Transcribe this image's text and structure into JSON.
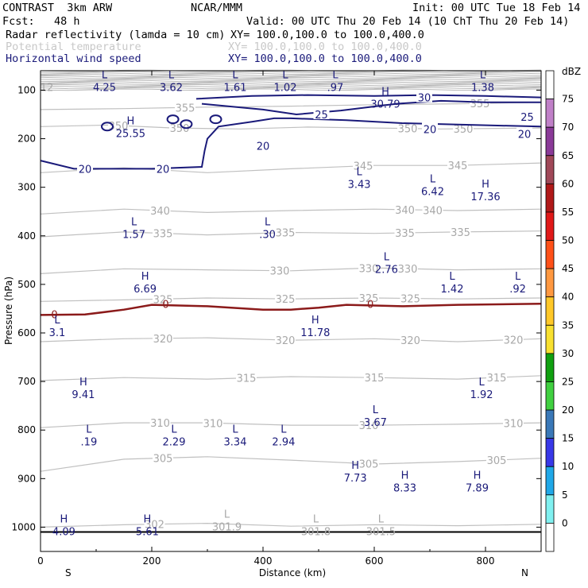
{
  "header": {
    "model": "CONTRAST  3km ARW",
    "org": "NCAR/MMM",
    "init": "Init: 00 UTC Tue 18 Feb 14",
    "fcst": "Fcst:   48 h",
    "valid": "Valid: 00 UTC Thu 20 Feb 14 (10 ChT Thu 20 Feb 14)",
    "fields": [
      {
        "name": "Radar reflectivity (lamda = 10 cm)",
        "xy": "XY= 100.0,100.0 to 100.0,400.0",
        "color": "#000000"
      },
      {
        "name": "Potential temperature",
        "xy": "XY= 100.0,100.0 to 100.0,400.0",
        "color": "#c8c8c8"
      },
      {
        "name": "Horizontal wind speed",
        "xy": "XY= 100.0,100.0 to 100.0,400.0",
        "color": "#1a1a7a"
      }
    ]
  },
  "chart_data": {
    "type": "cross-section",
    "xlabel": "Distance (km)",
    "ylabel": "Pressure (hPa)",
    "xlim": [
      0,
      900
    ],
    "ylim": [
      60,
      1050
    ],
    "x_ticks": [
      0,
      200,
      400,
      600,
      800
    ],
    "y_ticks": [
      100,
      200,
      300,
      400,
      500,
      600,
      700,
      800,
      900,
      1000
    ],
    "left_end_label": "S",
    "right_end_label": "N",
    "colorbar": {
      "unit": "dBZ",
      "levels": [
        75,
        70,
        65,
        60,
        55,
        50,
        45,
        40,
        35,
        30,
        25,
        20,
        15,
        10,
        5,
        0
      ],
      "colors": [
        "#ffffff",
        "#c080c8",
        "#8a3a98",
        "#a04858",
        "#b01818",
        "#e01818",
        "#ff5018",
        "#ff9840",
        "#ffc828",
        "#f8e030",
        "#10a010",
        "#40d040",
        "#3a78b8",
        "#3838e8",
        "#20a8e8",
        "#80f0f0",
        "#ffffff"
      ]
    },
    "theta_isentropes": [
      {
        "label": "355",
        "p": 137,
        "points": [
          [
            0,
            140
          ],
          [
            150,
            138
          ],
          [
            300,
            135
          ],
          [
            450,
            133
          ],
          [
            600,
            130
          ],
          [
            750,
            128
          ],
          [
            900,
            125
          ]
        ],
        "labels_at": [
          260,
          790
        ]
      },
      {
        "label": "350",
        "p": 178,
        "points": [
          [
            0,
            175
          ],
          [
            120,
            172
          ],
          [
            240,
            178
          ],
          [
            360,
            180
          ],
          [
            480,
            176
          ],
          [
            600,
            178
          ],
          [
            720,
            180
          ],
          [
            900,
            178
          ]
        ],
        "labels_at": [
          140,
          250,
          660,
          760
        ]
      },
      {
        "label": "345",
        "p": 265,
        "points": [
          [
            0,
            270
          ],
          [
            150,
            260
          ],
          [
            300,
            270
          ],
          [
            450,
            262
          ],
          [
            600,
            255
          ],
          [
            750,
            255
          ],
          [
            900,
            250
          ]
        ],
        "labels_at": [
          580,
          750
        ]
      },
      {
        "label": "340",
        "p": 350,
        "points": [
          [
            0,
            355
          ],
          [
            150,
            345
          ],
          [
            300,
            352
          ],
          [
            450,
            348
          ],
          [
            600,
            345
          ],
          [
            750,
            348
          ],
          [
            900,
            345
          ]
        ],
        "labels_at": [
          215,
          655,
          705
        ]
      },
      {
        "label": "335",
        "p": 395,
        "points": [
          [
            0,
            402
          ],
          [
            150,
            392
          ],
          [
            300,
            398
          ],
          [
            450,
            393
          ],
          [
            600,
            395
          ],
          [
            750,
            392
          ],
          [
            900,
            390
          ]
        ],
        "labels_at": [
          220,
          440,
          655,
          755
        ]
      },
      {
        "label": "330",
        "p": 470,
        "points": [
          [
            0,
            478
          ],
          [
            150,
            468
          ],
          [
            300,
            470
          ],
          [
            450,
            472
          ],
          [
            600,
            466
          ],
          [
            750,
            470
          ],
          [
            900,
            468
          ]
        ],
        "labels_at": [
          430,
          590,
          660
        ]
      },
      {
        "label": "325",
        "p": 530,
        "points": [
          [
            0,
            535
          ],
          [
            150,
            532
          ],
          [
            300,
            528
          ],
          [
            450,
            530
          ],
          [
            600,
            528
          ],
          [
            750,
            530
          ],
          [
            900,
            528
          ]
        ],
        "labels_at": [
          220,
          440,
          590,
          665
        ]
      },
      {
        "label": "320",
        "p": 615,
        "points": [
          [
            0,
            618
          ],
          [
            150,
            612
          ],
          [
            300,
            610
          ],
          [
            450,
            615
          ],
          [
            600,
            612
          ],
          [
            750,
            618
          ],
          [
            900,
            612
          ]
        ],
        "labels_at": [
          220,
          440,
          665,
          850
        ]
      },
      {
        "label": "315",
        "p": 695,
        "points": [
          [
            0,
            698
          ],
          [
            150,
            692
          ],
          [
            300,
            695
          ],
          [
            450,
            690
          ],
          [
            600,
            692
          ],
          [
            750,
            695
          ],
          [
            900,
            688
          ]
        ],
        "labels_at": [
          370,
          600,
          820
        ]
      },
      {
        "label": "310",
        "p": 790,
        "points": [
          [
            0,
            795
          ],
          [
            150,
            785
          ],
          [
            300,
            785
          ],
          [
            450,
            790
          ],
          [
            600,
            790
          ],
          [
            750,
            788
          ],
          [
            900,
            785
          ]
        ],
        "labels_at": [
          215,
          310,
          590,
          850
        ]
      },
      {
        "label": "305",
        "p": 865,
        "points": [
          [
            0,
            885
          ],
          [
            150,
            860
          ],
          [
            300,
            855
          ],
          [
            450,
            862
          ],
          [
            600,
            870
          ],
          [
            750,
            865
          ],
          [
            900,
            858
          ]
        ],
        "labels_at": [
          220,
          590,
          820
        ]
      },
      {
        "label": "302",
        "p": 995,
        "points": [
          [
            0,
            1000
          ],
          [
            150,
            995
          ],
          [
            300,
            992
          ],
          [
            450,
            998
          ],
          [
            600,
            995
          ],
          [
            750,
            997
          ],
          [
            900,
            994
          ]
        ],
        "labels_at": [
          205
        ]
      }
    ],
    "wind_contours": [
      {
        "label": "20",
        "points": [
          [
            0,
            245
          ],
          [
            60,
            262
          ],
          [
            200,
            262
          ],
          [
            290,
            258
          ],
          [
            295,
            225
          ],
          [
            300,
            200
          ],
          [
            320,
            175
          ],
          [
            380,
            165
          ],
          [
            420,
            158
          ],
          [
            450,
            158
          ],
          [
            550,
            162
          ],
          [
            650,
            168
          ],
          [
            900,
            175
          ]
        ],
        "labels_at": [
          [
            80,
            262
          ],
          [
            220,
            262
          ],
          [
            400,
            215
          ],
          [
            700,
            180
          ],
          [
            870,
            190
          ]
        ]
      },
      {
        "label": "25",
        "points": [
          [
            290,
            128
          ],
          [
            400,
            140
          ],
          [
            460,
            150
          ],
          [
            540,
            142
          ],
          [
            640,
            128
          ],
          [
            720,
            122
          ],
          [
            800,
            125
          ],
          [
            900,
            125
          ]
        ],
        "labels_at": [
          [
            505,
            150
          ],
          [
            875,
            155
          ]
        ]
      },
      {
        "label": "30",
        "points": [
          [
            280,
            118
          ],
          [
            380,
            112
          ],
          [
            480,
            110
          ],
          [
            600,
            112
          ],
          [
            700,
            110
          ],
          [
            800,
            112
          ],
          [
            900,
            115
          ]
        ],
        "labels_at": [
          [
            690,
            115
          ]
        ]
      }
    ],
    "wind_extrema": [
      {
        "type": "L",
        "value": "4.25",
        "x": 115,
        "p": 85
      },
      {
        "type": "L",
        "value": "3.62",
        "x": 235,
        "p": 85
      },
      {
        "type": "L",
        "value": "1.61",
        "x": 350,
        "p": 85
      },
      {
        "type": "L",
        "value": "1.02",
        "x": 440,
        "p": 85
      },
      {
        "type": "L",
        "value": ".97",
        "x": 530,
        "p": 85
      },
      {
        "type": "L",
        "value": "1.38",
        "x": 795,
        "p": 85
      },
      {
        "type": "H",
        "value": "30.79",
        "x": 620,
        "p": 120
      },
      {
        "type": "H",
        "value": "25.55",
        "x": 162,
        "p": 180
      },
      {
        "type": "L",
        "value": "3.43",
        "x": 573,
        "p": 285
      },
      {
        "type": "L",
        "value": "6.42",
        "x": 705,
        "p": 300
      },
      {
        "type": "H",
        "value": "17.36",
        "x": 800,
        "p": 310
      },
      {
        "type": "L",
        "value": "1.57",
        "x": 168,
        "p": 388
      },
      {
        "type": "L",
        "value": ".30",
        "x": 408,
        "p": 388
      },
      {
        "type": "L",
        "value": "2.76",
        "x": 622,
        "p": 460
      },
      {
        "type": "H",
        "value": "6.69",
        "x": 188,
        "p": 500
      },
      {
        "type": "L",
        "value": "1.42",
        "x": 740,
        "p": 500
      },
      {
        "type": "L",
        "value": ".92",
        "x": 858,
        "p": 500
      },
      {
        "type": "L",
        "value": "3.1",
        "x": 30,
        "p": 590
      },
      {
        "type": "H",
        "value": "11.78",
        "x": 494,
        "p": 590
      },
      {
        "type": "H",
        "value": "9.41",
        "x": 77,
        "p": 718
      },
      {
        "type": "L",
        "value": "1.92",
        "x": 793,
        "p": 718
      },
      {
        "type": "L",
        "value": "3.67",
        "x": 602,
        "p": 775
      },
      {
        "type": "L",
        "value": ".19",
        "x": 87,
        "p": 815
      },
      {
        "type": "L",
        "value": "2.29",
        "x": 240,
        "p": 815
      },
      {
        "type": "L",
        "value": "3.34",
        "x": 350,
        "p": 815
      },
      {
        "type": "L",
        "value": "2.94",
        "x": 437,
        "p": 815
      },
      {
        "type": "H",
        "value": "7.73",
        "x": 566,
        "p": 890
      },
      {
        "type": "H",
        "value": "8.33",
        "x": 655,
        "p": 910
      },
      {
        "type": "H",
        "value": "7.89",
        "x": 785,
        "p": 910
      },
      {
        "type": "H",
        "value": "4.09",
        "x": 42,
        "p": 1000
      },
      {
        "type": "H",
        "value": "5.61",
        "x": 192,
        "p": 1000
      }
    ],
    "theta_extrema": [
      {
        "type": "L",
        "value": "301.9",
        "x": 335,
        "p": 990
      },
      {
        "type": "L",
        "value": "301.8",
        "x": 495,
        "p": 1000
      },
      {
        "type": "L",
        "value": "301.5",
        "x": 612,
        "p": 1000
      },
      {
        "type": "L",
        "value": "12",
        "x": 0,
        "p": 85
      }
    ],
    "dbz_zero_line": {
      "label": "0",
      "points": [
        [
          0,
          563
        ],
        [
          80,
          562
        ],
        [
          150,
          552
        ],
        [
          200,
          542
        ],
        [
          300,
          545
        ],
        [
          400,
          552
        ],
        [
          450,
          552
        ],
        [
          500,
          548
        ],
        [
          550,
          542
        ],
        [
          650,
          545
        ],
        [
          750,
          542
        ],
        [
          900,
          540
        ]
      ],
      "labels_at": [
        [
          25,
          563
        ],
        [
          225,
          542
        ],
        [
          593,
          542
        ]
      ]
    },
    "surface_p": 1010,
    "top_stratosphere_band": {
      "p_top": 60,
      "p_bottom": 102
    }
  }
}
